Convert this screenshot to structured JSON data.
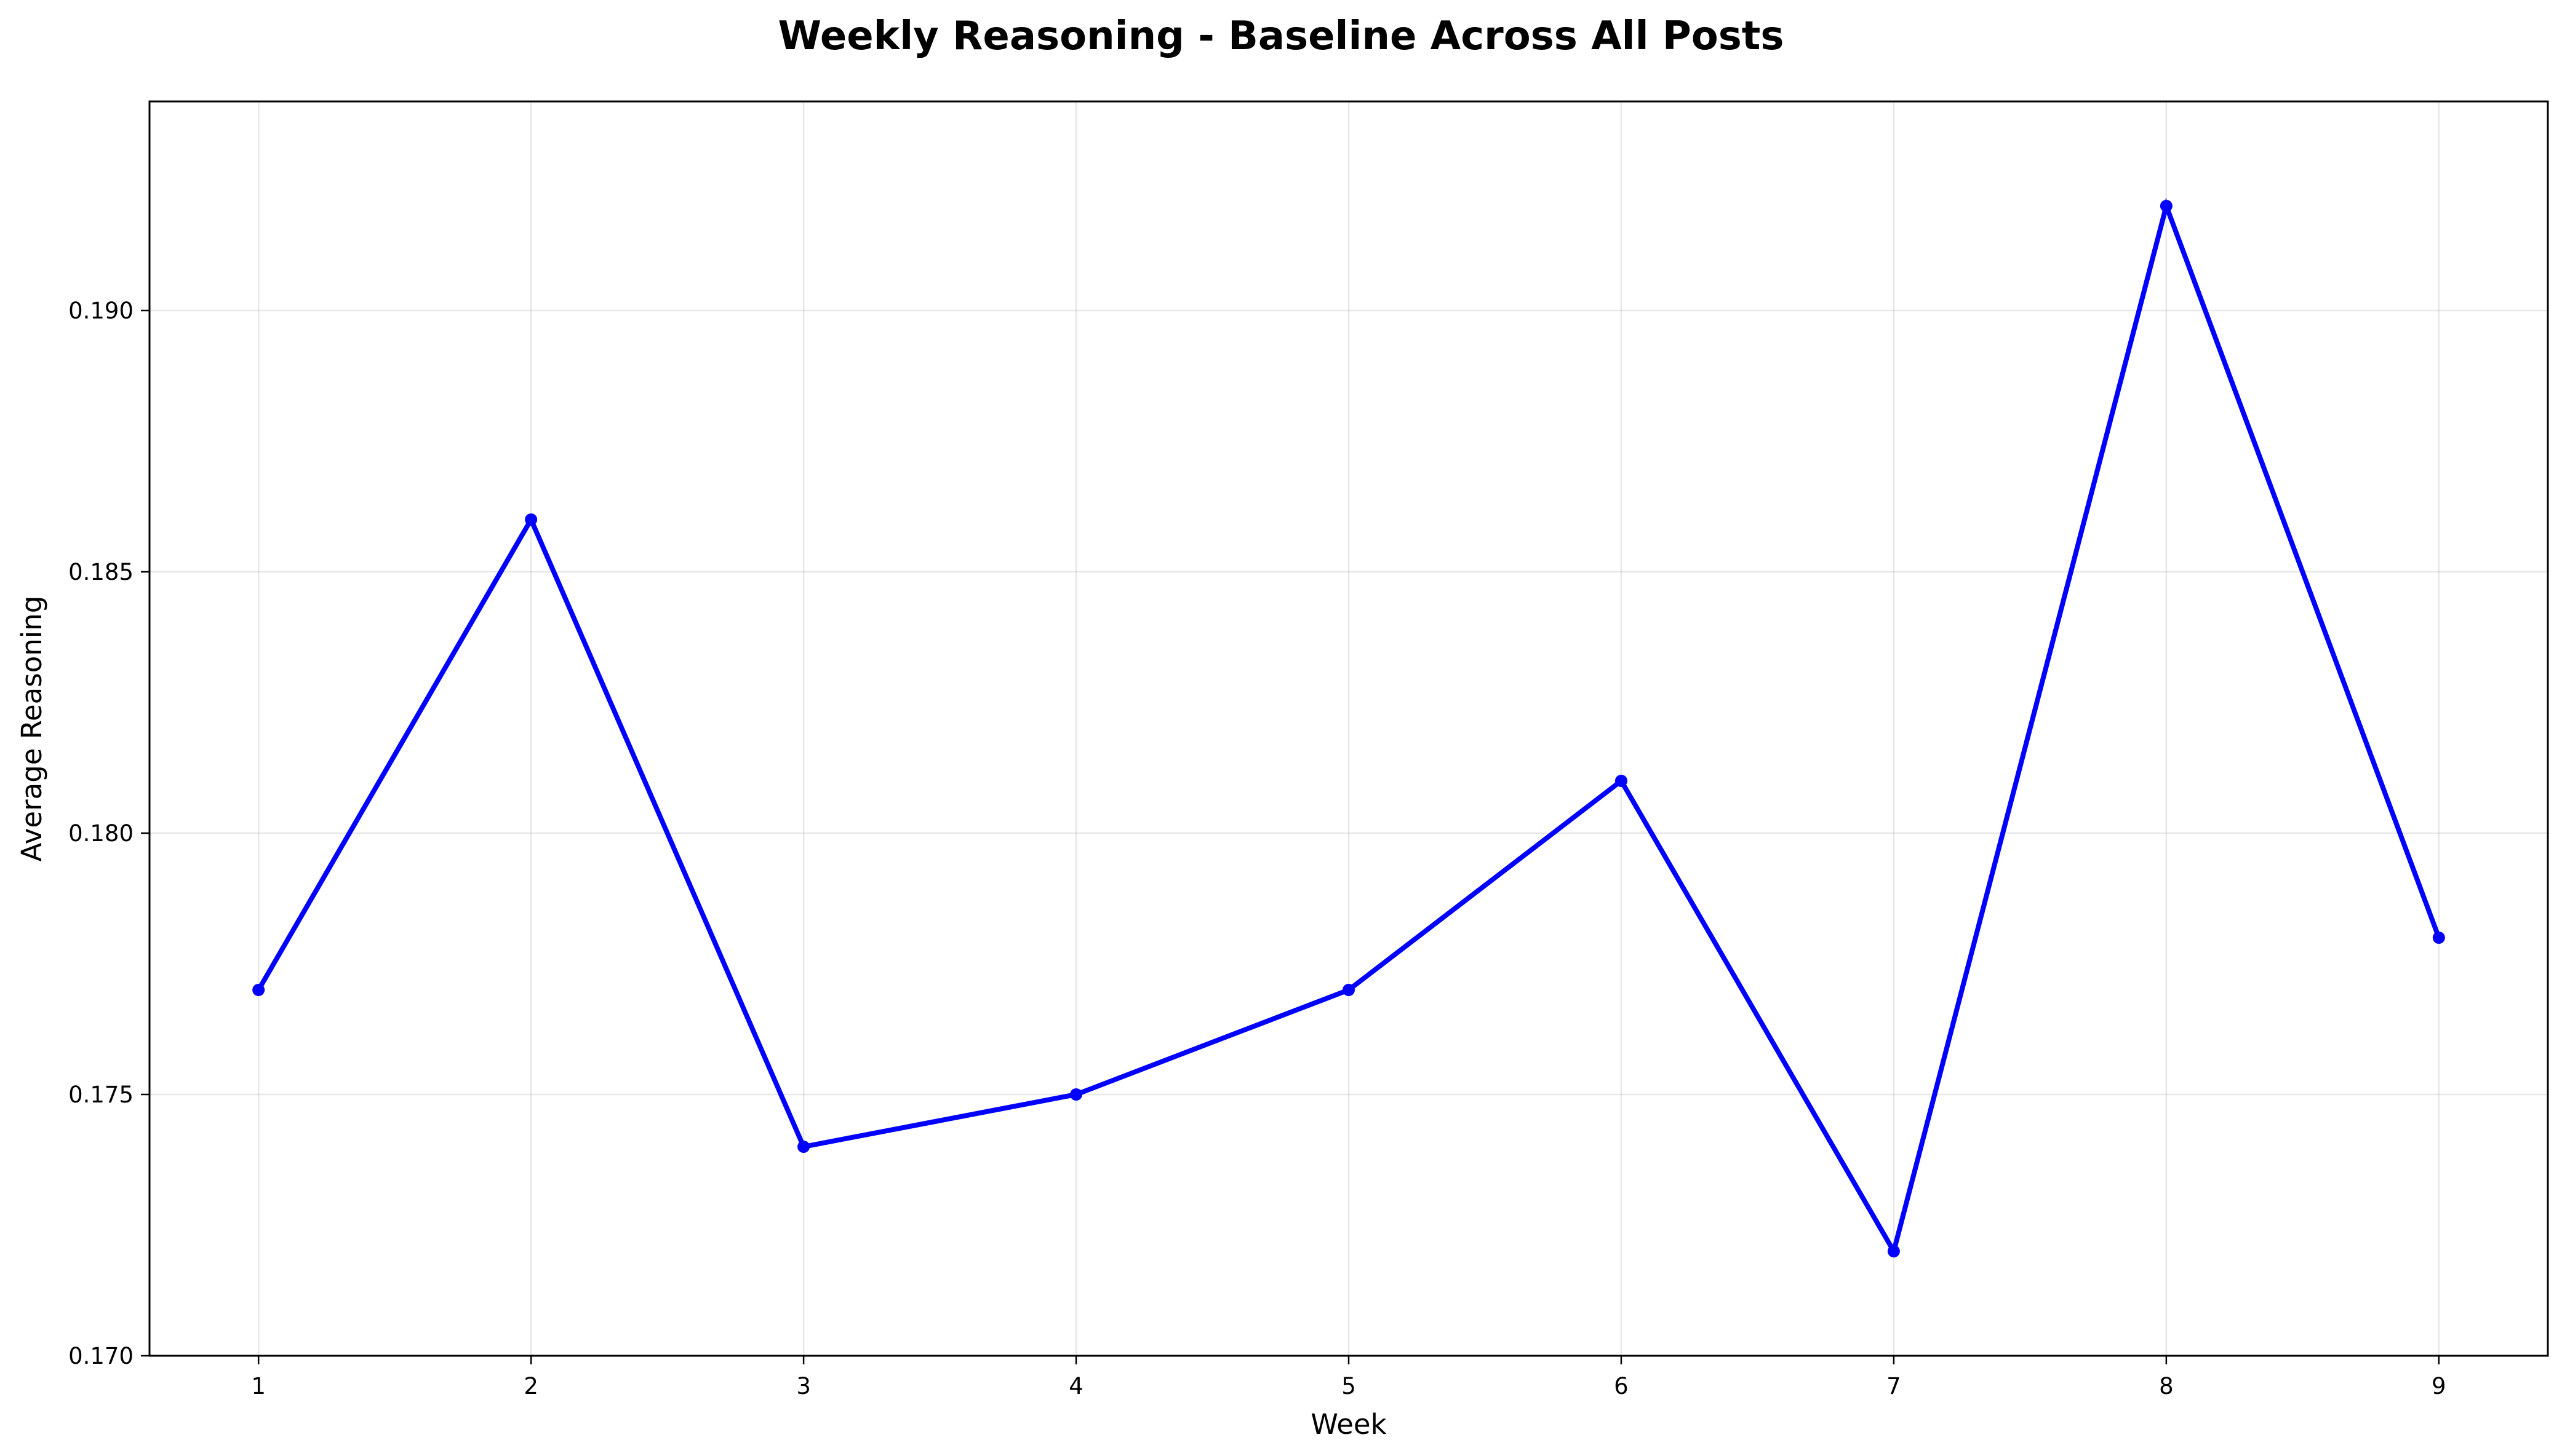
{
  "chart_data": {
    "type": "line",
    "title": "Weekly Reasoning - Baseline Across All Posts",
    "xlabel": "Week",
    "ylabel": "Average Reasoning",
    "x": [
      1,
      2,
      3,
      4,
      5,
      6,
      7,
      8,
      9
    ],
    "xticks": [
      "1",
      "2",
      "3",
      "4",
      "5",
      "6",
      "7",
      "8",
      "9"
    ],
    "yticks": [
      "0.170",
      "0.175",
      "0.180",
      "0.185",
      "0.190"
    ],
    "ytick_values": [
      0.17,
      0.175,
      0.18,
      0.185,
      0.19
    ],
    "xlim": [
      0.6,
      9.4
    ],
    "ylim": [
      0.17,
      0.194
    ],
    "grid": true,
    "series": [
      {
        "values": [
          0.177,
          0.186,
          0.174,
          0.175,
          0.177,
          0.181,
          0.172,
          0.192,
          0.178
        ],
        "color": "#0000ff",
        "marker": "circle"
      }
    ]
  }
}
